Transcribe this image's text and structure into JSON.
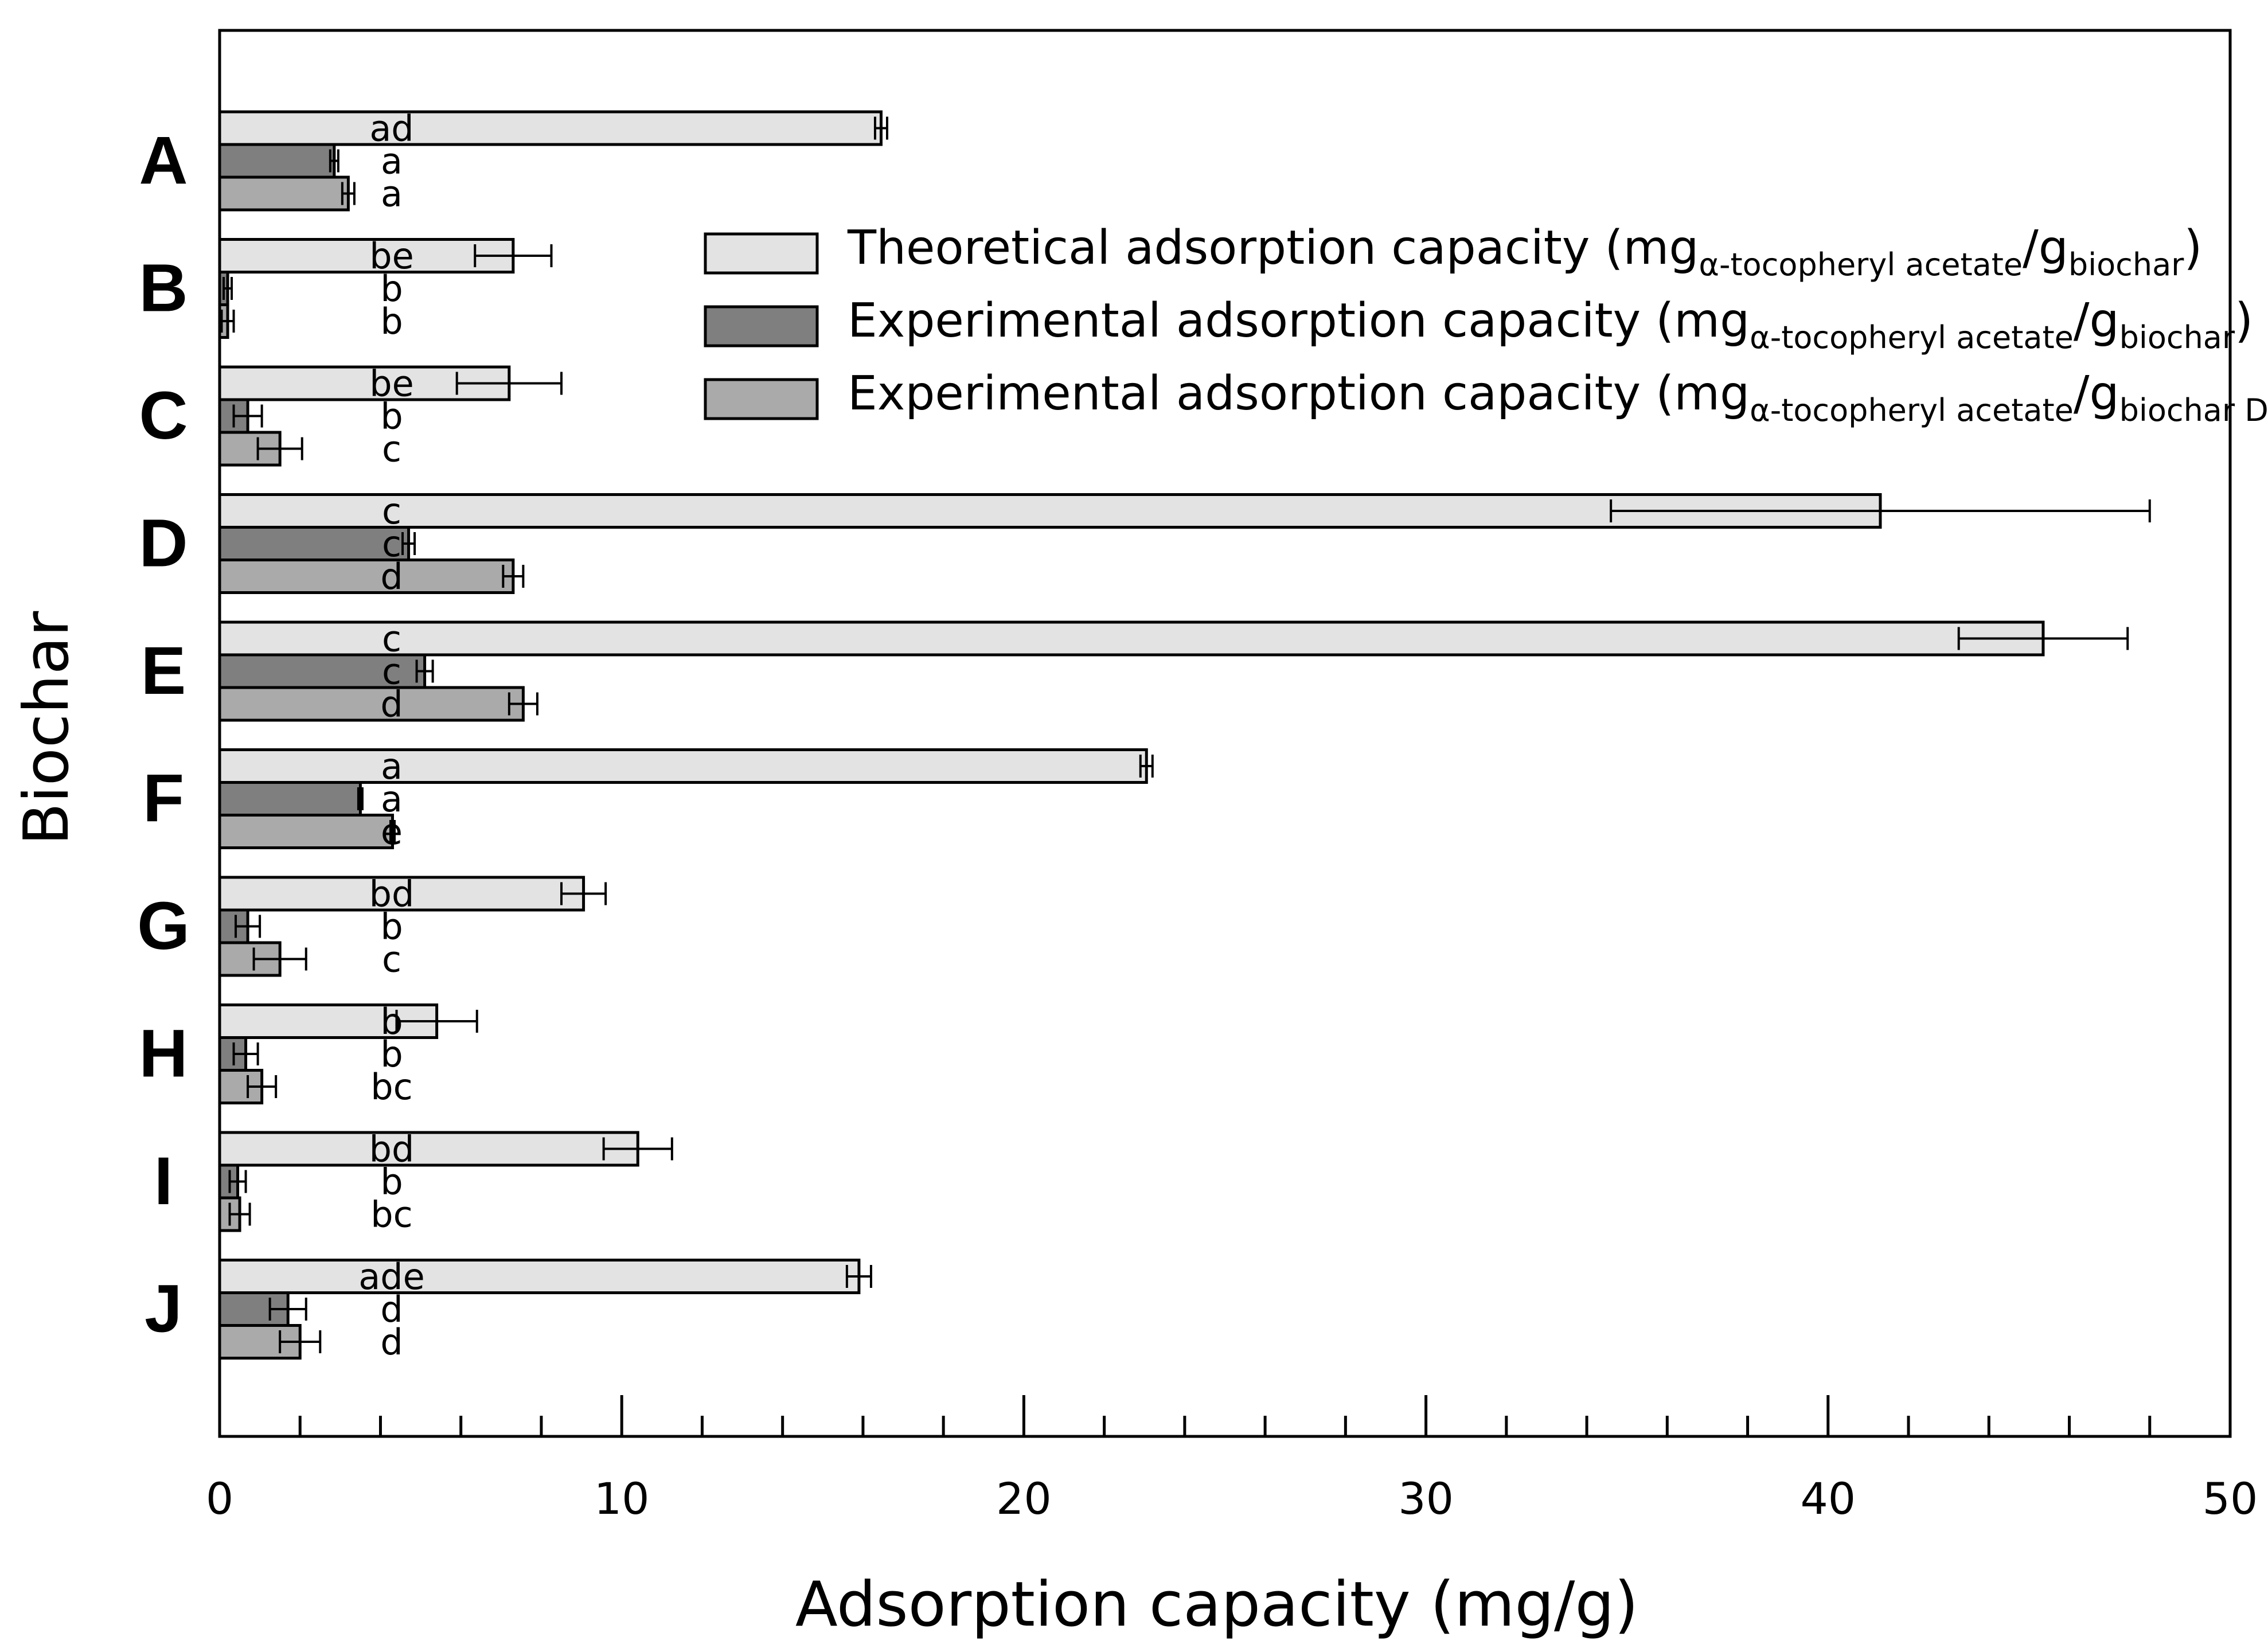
{
  "chart_data": {
    "type": "bar",
    "orientation": "horizontal",
    "title": "",
    "xlabel": "Adsorption capacity (mg/g)",
    "ylabel": "Biochar",
    "xlim": [
      0,
      50
    ],
    "x_major_ticks": [
      0,
      10,
      20,
      30,
      40,
      50
    ],
    "x_minor_step": 2,
    "grid": false,
    "legend_position": "top-right",
    "categories": [
      "A",
      "B",
      "C",
      "D",
      "E",
      "F",
      "G",
      "H",
      "I",
      "J"
    ],
    "series": [
      {
        "name": "Theoretical adsorption capacity",
        "legend_main": "Theoretical adsorption capacity (mg",
        "legend_sub1": "α-tocopheryl acetate",
        "legend_mid": "/g",
        "legend_sub2": "biochar",
        "legend_end": ")",
        "color": "#e3e3e3",
        "values": [
          16.45,
          7.3,
          7.2,
          41.3,
          45.35,
          23.05,
          9.05,
          5.4,
          10.4,
          15.9
        ],
        "errors": [
          0.15,
          0.95,
          1.3,
          6.7,
          2.1,
          0.15,
          0.55,
          1.0,
          0.85,
          0.3
        ],
        "letters": [
          "ad",
          "be",
          "be",
          "c",
          "c",
          "a",
          "bd",
          "b",
          "bd",
          "ade"
        ]
      },
      {
        "name": "Experimental adsorption capacity (per biochar)",
        "legend_main": "Experimental adsorption capacity (mg",
        "legend_sub1": "α-tocopheryl acetate",
        "legend_mid": "/g",
        "legend_sub2": "biochar",
        "legend_end": ")",
        "color": "#7f7f7f",
        "values": [
          2.85,
          0.2,
          0.7,
          4.7,
          5.1,
          3.5,
          0.7,
          0.65,
          0.45,
          1.7
        ],
        "errors": [
          0.1,
          0.1,
          0.35,
          0.15,
          0.2,
          0.05,
          0.3,
          0.3,
          0.2,
          0.45
        ],
        "letters": [
          "a",
          "b",
          "b",
          "c",
          "c",
          "a",
          "b",
          "b",
          "b",
          "d"
        ]
      },
      {
        "name": "Experimental adsorption capacity (per biochar DM)",
        "legend_main": "Experimental adsorption capacity (mg",
        "legend_sub1": "α-tocopheryl acetate",
        "legend_mid": "/g",
        "legend_sub2": "biochar DM",
        "legend_end": ")",
        "color": "#aaaaaa",
        "values": [
          3.2,
          0.2,
          1.5,
          7.3,
          7.55,
          4.3,
          1.5,
          1.05,
          0.5,
          2.0
        ],
        "errors": [
          0.15,
          0.15,
          0.55,
          0.25,
          0.35,
          0.05,
          0.65,
          0.35,
          0.25,
          0.5
        ],
        "letters": [
          "a",
          "b",
          "c",
          "d",
          "d",
          "e",
          "c",
          "bc",
          "bc",
          "d"
        ]
      }
    ]
  }
}
